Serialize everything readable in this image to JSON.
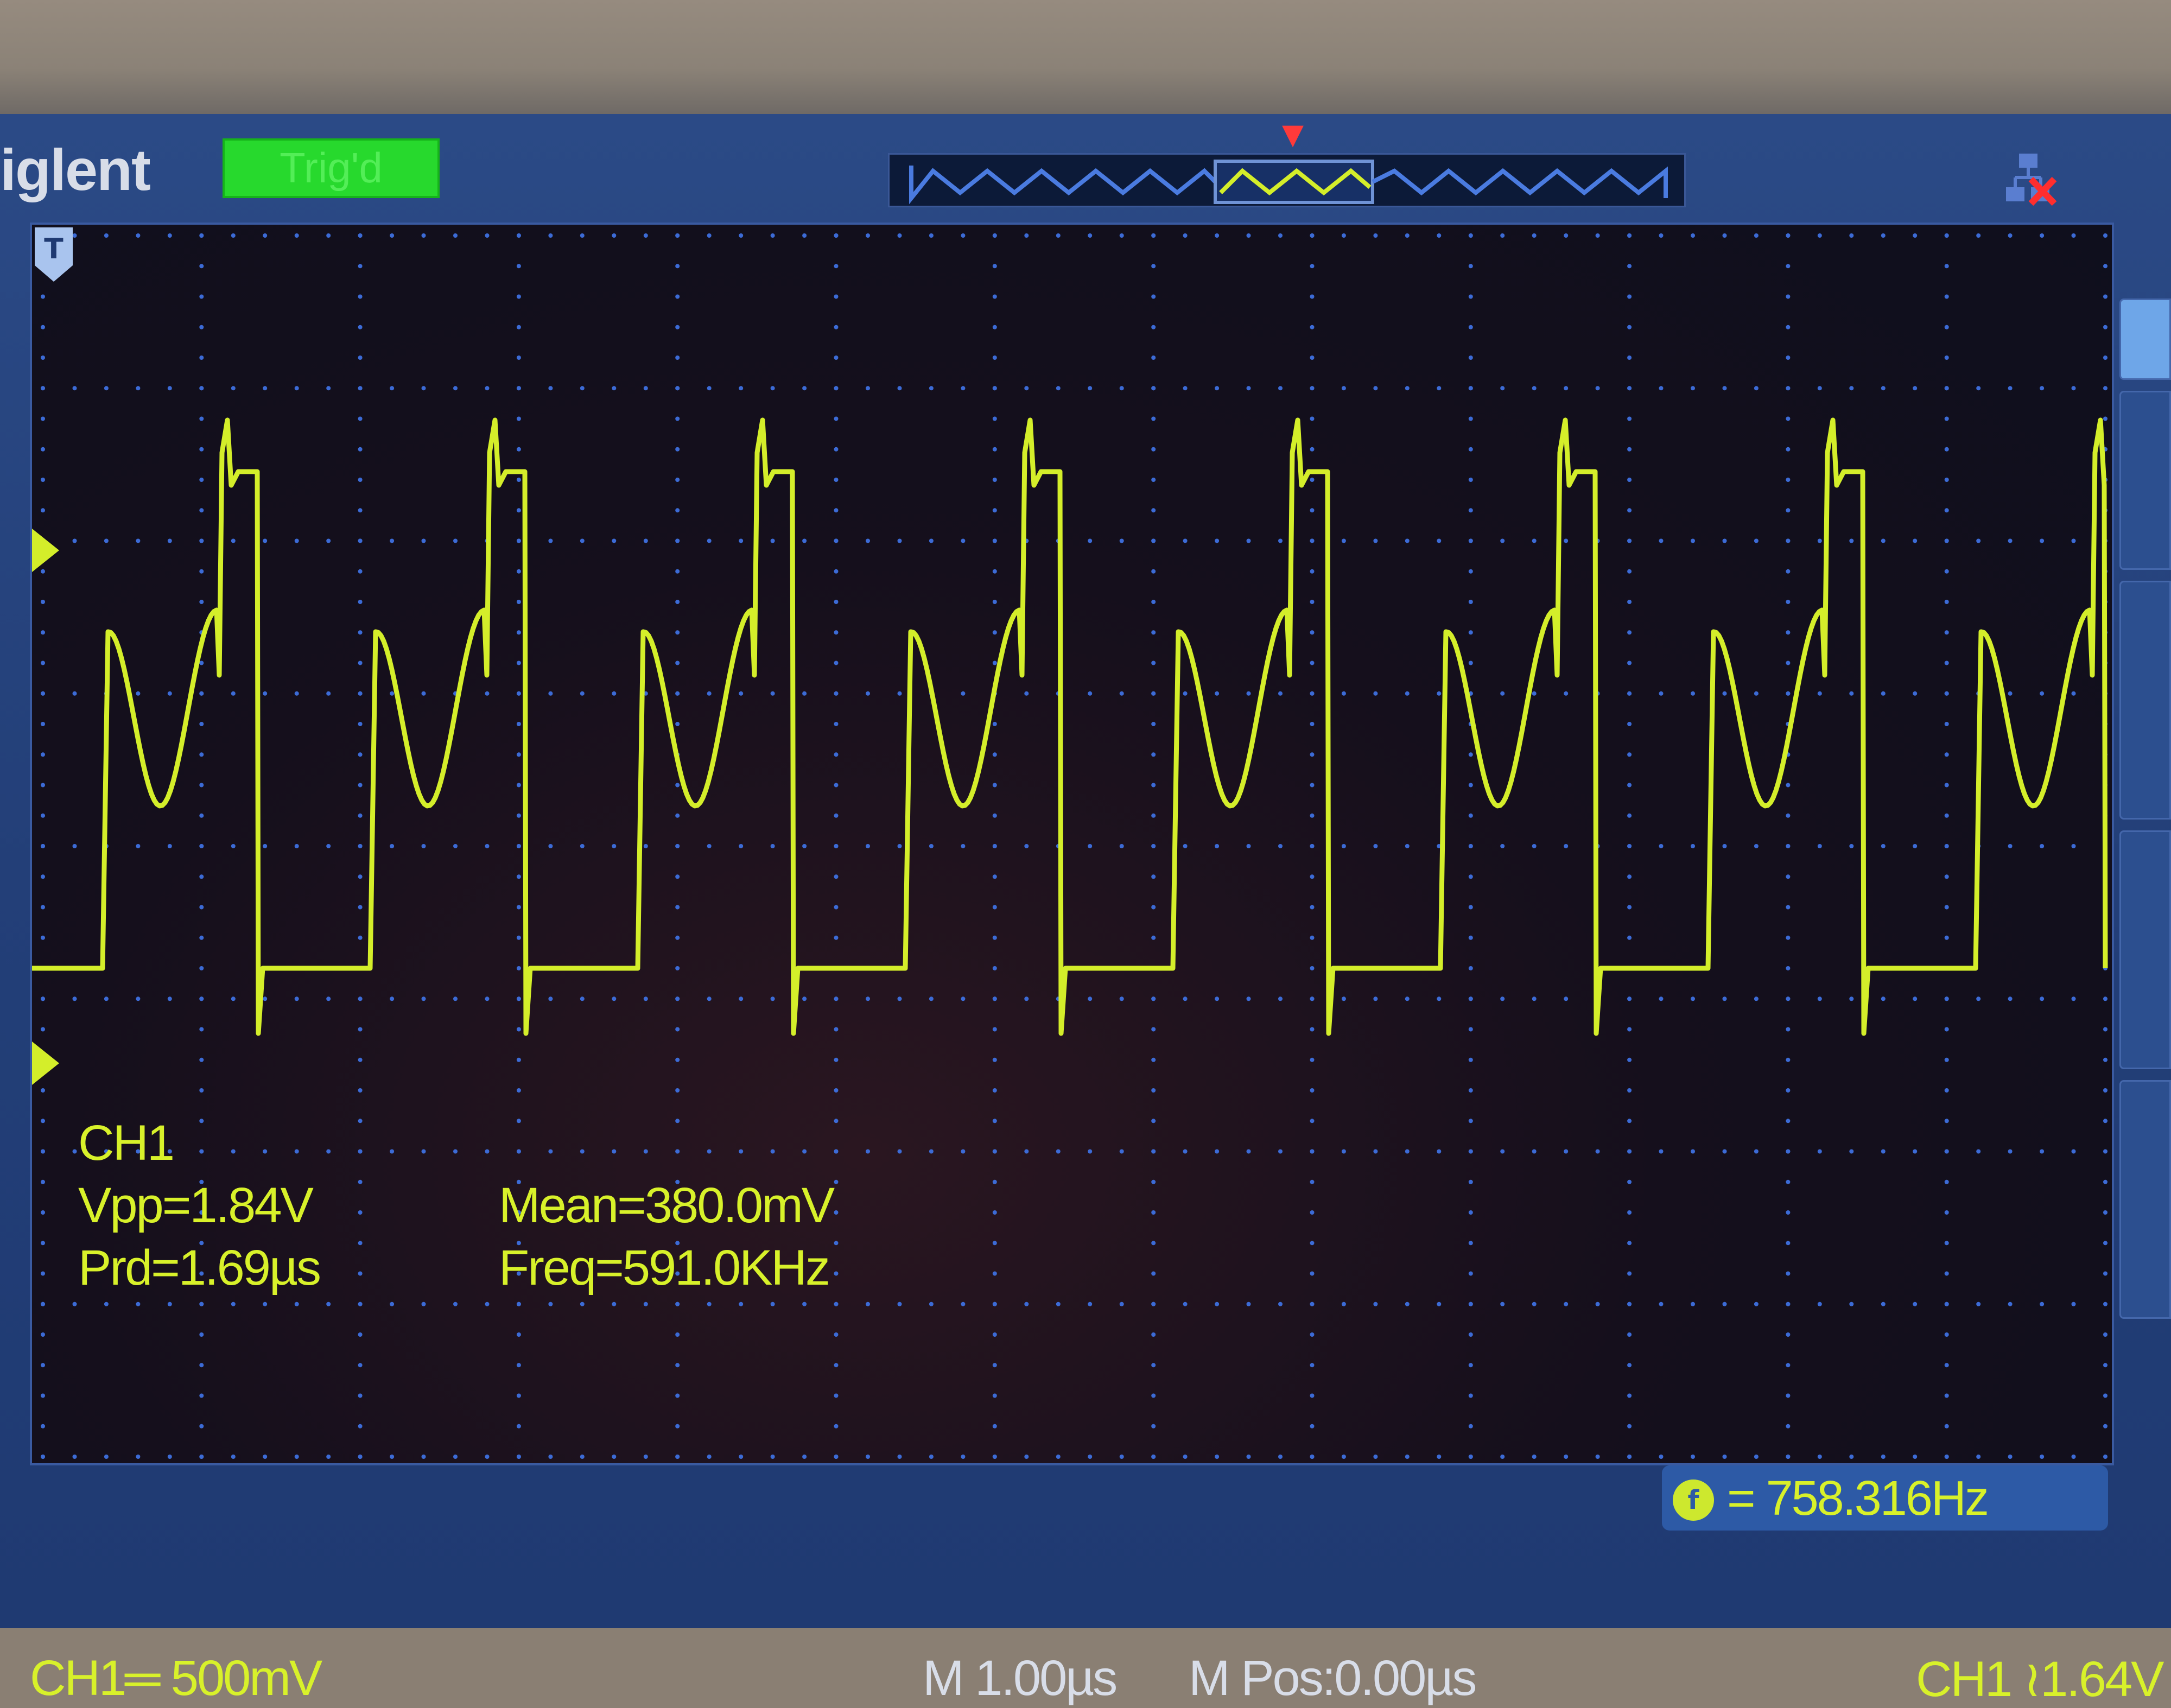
{
  "header": {
    "brand": "iglent",
    "trigger_status": "Trig'd"
  },
  "measurements": {
    "channel": "CH1",
    "vpp": "Vpp=1.84V",
    "period": "Prd=1.69µs",
    "mean": "Mean=380.0mV",
    "frequency": "Freq=591.0KHz"
  },
  "counter": {
    "icon": "f",
    "value": "= 758.316Hz"
  },
  "status_bar": {
    "channel_scale": "CH1═ 500mV",
    "timebase": "M 1.00µs",
    "position": "M Pos:0.00µs",
    "trigger": "CH1 ≀1.64V"
  },
  "icons": {
    "network": "network-disconnected-icon",
    "trigger_marker": "T"
  },
  "colors": {
    "trace": "#d4ee2a",
    "grid_dots": "#3c6bd6",
    "accent": "#2d5aa6",
    "trig_status_bg": "#27d92d"
  }
}
